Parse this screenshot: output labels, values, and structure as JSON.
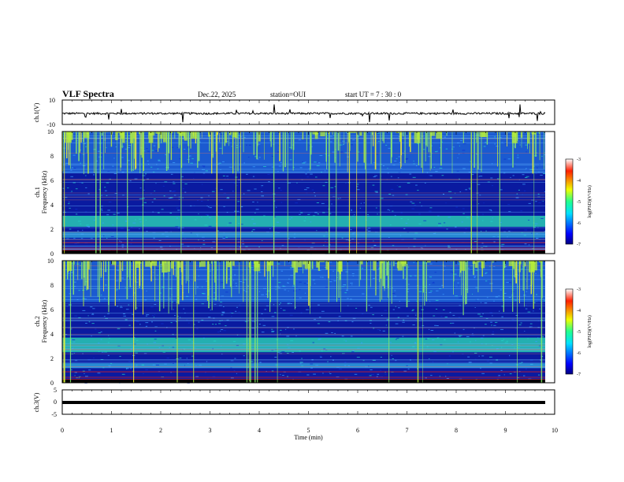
{
  "header": {
    "title": "VLF Spectra",
    "date": "Dec.22, 2025",
    "station": "station=OUI",
    "start_ut": "start  UT =  7 : 30 : 0"
  },
  "colors": {
    "noise_floor": "#0a1aa0",
    "band_strong": "#2ad5b5",
    "band_peak": "#b4ec3a",
    "spike": "#8cf06a",
    "hot": "#e02020"
  },
  "chart_data": [
    {
      "type": "line",
      "panel": "ch1 waveform",
      "ylabel": "ch.1(V)",
      "ylim": [
        -10,
        10
      ],
      "yticks": [
        "10",
        "-10"
      ],
      "baseline": -1,
      "grid": false
    },
    {
      "type": "heatmap",
      "panel": "ch1 spectrogram",
      "ylabel": "ch.1\nFrequency (kHz)",
      "ylabel_lines": [
        "ch.1",
        "Frequency  (kHz)"
      ],
      "ylim": [
        0,
        10
      ],
      "yticks": [
        "0",
        "2",
        "4",
        "6",
        "8",
        "10"
      ],
      "xlim": [
        0,
        9.83
      ],
      "enhanced_bands_khz": [
        [
          2.2,
          3.1
        ],
        [
          1.3,
          1.8
        ]
      ],
      "spike_freq_range_khz": [
        6.5,
        10
      ],
      "colorbar": {
        "label": "log(PSD)(V²/Hz)",
        "range": [
          -7,
          -3
        ],
        "ticks": [
          "-3",
          "-4",
          "-5",
          "-6",
          "-7"
        ]
      }
    },
    {
      "type": "heatmap",
      "panel": "ch2 spectrogram",
      "ylabel_lines": [
        "ch.2",
        "Frequency  (kHz)"
      ],
      "ylim": [
        0,
        10
      ],
      "yticks": [
        "0",
        "2",
        "4",
        "6",
        "8",
        "10"
      ],
      "xlim": [
        0,
        9.83
      ],
      "enhanced_bands_khz": [
        [
          2.5,
          3.7
        ],
        [
          1.2,
          1.6
        ]
      ],
      "spike_freq_range_khz": [
        5.5,
        10
      ],
      "colorbar": {
        "label": "log(PSD)(V²/Hz)",
        "range": [
          -7,
          -3
        ],
        "ticks": [
          "-3",
          "-4",
          "-5",
          "-6",
          "-7"
        ]
      }
    },
    {
      "type": "line",
      "panel": "ch3 waveform",
      "ylabel": "ch.3(V)",
      "ylim": [
        -5,
        5
      ],
      "yticks": [
        "5",
        "0",
        "-5"
      ],
      "baseline": -1,
      "grid": false
    }
  ],
  "xaxis": {
    "label": "Time  (min)",
    "range": [
      0,
      10
    ],
    "ticks": [
      "0",
      "1",
      "2",
      "3",
      "4",
      "5",
      "6",
      "7",
      "8",
      "9",
      "10"
    ]
  }
}
